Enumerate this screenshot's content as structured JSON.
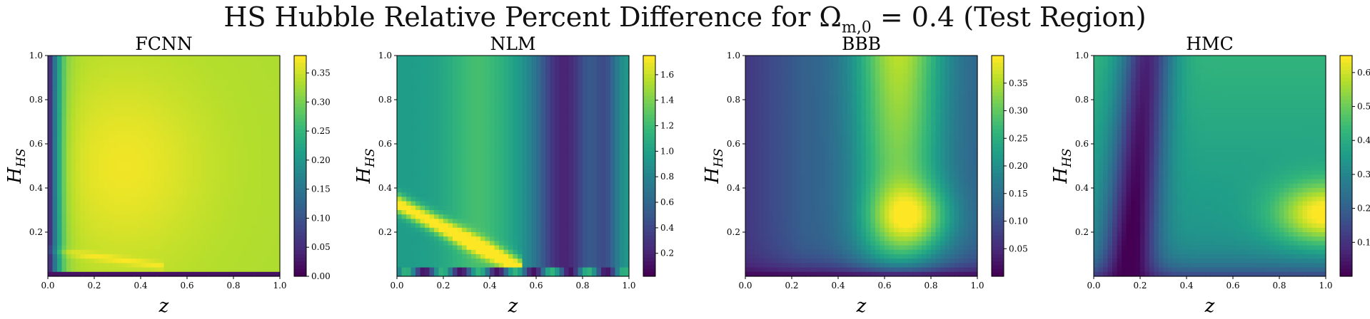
{
  "figure": {
    "title_prefix": "HS Hubble Relative Percent Difference for Ω",
    "title_sub": "m,0",
    "title_suffix": " = 0.4 (Test Region)"
  },
  "chart_data": [
    {
      "type": "heatmap",
      "title": "FCNN",
      "xlabel": "z",
      "ylabel": "H_HS",
      "xlim": [
        0.0,
        1.0
      ],
      "ylim": [
        0.0,
        1.0
      ],
      "xticks": [
        "0.0",
        "0.2",
        "0.4",
        "0.6",
        "0.8",
        "1.0"
      ],
      "yticks": [
        "0.2",
        "0.4",
        "0.6",
        "0.8",
        "1.0"
      ],
      "colormap": "viridis",
      "colorbar": {
        "min": 0.0,
        "max": 0.38,
        "ticks": [
          "0.00",
          "0.05",
          "0.10",
          "0.15",
          "0.20",
          "0.25",
          "0.30",
          "0.35"
        ]
      },
      "grid": false
    },
    {
      "type": "heatmap",
      "title": "NLM",
      "xlabel": "z",
      "ylabel": "H_HS",
      "xlim": [
        0.0,
        1.0
      ],
      "ylim": [
        0.0,
        1.0
      ],
      "xticks": [
        "0.0",
        "0.2",
        "0.4",
        "0.6",
        "0.8",
        "1.0"
      ],
      "yticks": [
        "0.2",
        "0.4",
        "0.6",
        "0.8",
        "1.0"
      ],
      "colormap": "viridis",
      "colorbar": {
        "min": 0.02,
        "max": 1.75,
        "ticks": [
          "0.2",
          "0.4",
          "0.6",
          "0.8",
          "1.0",
          "1.2",
          "1.4",
          "1.6"
        ]
      },
      "grid": false
    },
    {
      "type": "heatmap",
      "title": "BBB",
      "xlabel": "z",
      "ylabel": "H_HS",
      "xlim": [
        0.0,
        1.0
      ],
      "ylim": [
        0.0,
        1.0
      ],
      "xticks": [
        "0.0",
        "0.2",
        "0.4",
        "0.6",
        "0.8",
        "1.0"
      ],
      "yticks": [
        "0.2",
        "0.4",
        "0.6",
        "0.8",
        "1.0"
      ],
      "colormap": "viridis",
      "colorbar": {
        "min": 0.0,
        "max": 0.4,
        "ticks": [
          "0.05",
          "0.10",
          "0.15",
          "0.20",
          "0.25",
          "0.30",
          "0.35"
        ]
      },
      "grid": false
    },
    {
      "type": "heatmap",
      "title": "HMC",
      "xlabel": "z",
      "ylabel": "H_HS",
      "xlim": [
        0.0,
        1.0
      ],
      "ylim": [
        0.0,
        1.0
      ],
      "xticks": [
        "0.0",
        "0.2",
        "0.4",
        "0.6",
        "0.8",
        "1.0"
      ],
      "yticks": [
        "0.2",
        "0.4",
        "0.6",
        "0.8",
        "1.0"
      ],
      "colormap": "viridis",
      "colorbar": {
        "min": 0.0,
        "max": 0.65,
        "ticks": [
          "0.1",
          "0.2",
          "0.3",
          "0.4",
          "0.5",
          "0.6"
        ]
      },
      "grid": false
    }
  ]
}
